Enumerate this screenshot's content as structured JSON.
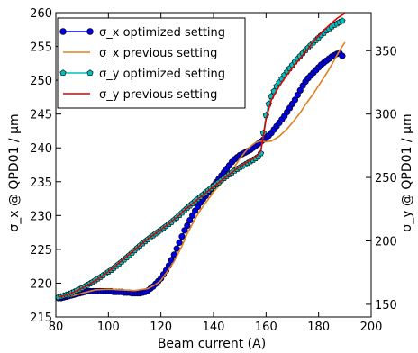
{
  "chart_data": {
    "type": "line",
    "title": "",
    "xlabel": "Beam current (A)",
    "ylabel_left": "σ_x @ QPD01 / μm",
    "ylabel_right": "σ_y @ QPD01 / μm",
    "xlim": [
      80,
      200
    ],
    "ylim_left": [
      215,
      260
    ],
    "ylim_right": [
      140,
      380
    ],
    "x_ticks": [
      80,
      100,
      120,
      140,
      160,
      180,
      200
    ],
    "y_left_ticks": [
      215,
      220,
      225,
      230,
      235,
      240,
      245,
      250,
      255,
      260
    ],
    "y_right_ticks": [
      150,
      200,
      250,
      300,
      350
    ],
    "grid": false,
    "legend_position": "top-left",
    "series": [
      {
        "name": "σ_x optimized setting",
        "axis": "left",
        "color": "#0000e0",
        "marker": "circle",
        "x": [
          81,
          82,
          83,
          84,
          85,
          86,
          87,
          88,
          89,
          90,
          91,
          92,
          93,
          94,
          95,
          96,
          97,
          98,
          99,
          100,
          101,
          102,
          103,
          104,
          105,
          106,
          107,
          108,
          109,
          110,
          111,
          112,
          113,
          114,
          115,
          116,
          117,
          118,
          119,
          120,
          121,
          122,
          123,
          124,
          125,
          126,
          127,
          128,
          129,
          130,
          131,
          132,
          133,
          134,
          135,
          136,
          137,
          138,
          139,
          140,
          141,
          142,
          143,
          144,
          145,
          146,
          147,
          148,
          149,
          150,
          151,
          152,
          153,
          154,
          155,
          156,
          157,
          158,
          159,
          160,
          161,
          162,
          163,
          164,
          165,
          166,
          167,
          168,
          169,
          170,
          171,
          172,
          173,
          174,
          175,
          176,
          177,
          178,
          179,
          180,
          181,
          182,
          183,
          184,
          185,
          186,
          187,
          188,
          189
        ],
        "y": [
          217.8,
          217.8,
          217.9,
          218.0,
          218.1,
          218.2,
          218.3,
          218.4,
          218.5,
          218.6,
          218.7,
          218.8,
          218.8,
          218.8,
          218.8,
          218.8,
          218.8,
          218.8,
          218.8,
          218.8,
          218.8,
          218.7,
          218.7,
          218.7,
          218.7,
          218.6,
          218.6,
          218.6,
          218.5,
          218.5,
          218.5,
          218.5,
          218.6,
          218.7,
          218.9,
          219.2,
          219.5,
          219.9,
          220.3,
          220.7,
          221.3,
          221.9,
          222.6,
          223.4,
          224.2,
          225.1,
          226.0,
          226.9,
          227.8,
          228.5,
          229.3,
          230.0,
          230.7,
          231.3,
          231.9,
          232.4,
          232.9,
          233.4,
          233.9,
          234.4,
          234.9,
          235.4,
          235.9,
          236.4,
          236.9,
          237.4,
          237.9,
          238.3,
          238.6,
          238.9,
          239.1,
          239.3,
          239.5,
          239.7,
          240.0,
          240.3,
          240.6,
          240.9,
          241.2,
          241.5,
          241.8,
          242.2,
          242.7,
          243.2,
          243.7,
          244.2,
          244.7,
          245.3,
          245.9,
          246.5,
          247.1,
          247.8,
          248.5,
          249.2,
          249.8,
          250.3,
          250.7,
          251.1,
          251.5,
          251.9,
          252.3,
          252.6,
          252.9,
          253.2,
          253.5,
          253.7,
          253.9,
          254.0,
          253.6
        ]
      },
      {
        "name": "σ_x previous setting",
        "axis": "left",
        "color": "#e08020",
        "marker": "none",
        "x": [
          81,
          85,
          90,
          95,
          100,
          105,
          110,
          115,
          118,
          120,
          122,
          125,
          128,
          130,
          133,
          135,
          138,
          140,
          143,
          145,
          148,
          150,
          152,
          154,
          156,
          158,
          160,
          162,
          165,
          168,
          170,
          173,
          175,
          178,
          180,
          183,
          185,
          188,
          190
        ],
        "y": [
          217.8,
          218.0,
          218.5,
          219.0,
          219.1,
          219.0,
          218.9,
          219.2,
          219.8,
          220.4,
          221.5,
          223.2,
          225.5,
          227.3,
          229.5,
          230.8,
          232.4,
          233.5,
          234.8,
          235.8,
          237.2,
          238.4,
          239.4,
          240.2,
          240.8,
          241.0,
          240.9,
          241.0,
          241.7,
          242.8,
          243.7,
          245.2,
          246.4,
          248.0,
          249.2,
          251.0,
          252.3,
          254.4,
          255.6
        ]
      },
      {
        "name": "σ_y optimized setting",
        "axis": "right",
        "color": "#00c0c0",
        "marker": "pentagon",
        "x": [
          81,
          82,
          83,
          84,
          85,
          86,
          87,
          88,
          89,
          90,
          91,
          92,
          93,
          94,
          95,
          96,
          97,
          98,
          99,
          100,
          101,
          102,
          103,
          104,
          105,
          106,
          107,
          108,
          109,
          110,
          111,
          112,
          113,
          114,
          115,
          116,
          117,
          118,
          119,
          120,
          121,
          122,
          123,
          124,
          125,
          126,
          127,
          128,
          129,
          130,
          131,
          132,
          133,
          134,
          135,
          136,
          137,
          138,
          139,
          140,
          141,
          142,
          143,
          144,
          145,
          146,
          147,
          148,
          149,
          150,
          151,
          152,
          153,
          154,
          155,
          156,
          157,
          158,
          159,
          160,
          161,
          162,
          163,
          164,
          165,
          166,
          167,
          168,
          169,
          170,
          171,
          172,
          173,
          174,
          175,
          176,
          177,
          178,
          179,
          180,
          181,
          182,
          183,
          184,
          185,
          186,
          187,
          188,
          189
        ],
        "y": [
          155.5,
          156.1,
          156.8,
          157.5,
          158.2,
          159.0,
          159.9,
          160.8,
          161.8,
          162.9,
          164.0,
          165.2,
          166.4,
          167.6,
          168.9,
          170.2,
          171.5,
          172.9,
          174.2,
          175.6,
          177.0,
          178.6,
          180.2,
          181.8,
          183.5,
          185.2,
          187.0,
          188.8,
          190.6,
          192.5,
          194.5,
          196.3,
          198.0,
          199.6,
          201.2,
          202.8,
          204.3,
          205.8,
          207.3,
          208.7,
          210.2,
          211.7,
          213.3,
          214.9,
          216.6,
          218.4,
          220.3,
          222.2,
          224.1,
          226.0,
          227.8,
          229.6,
          231.4,
          233.1,
          234.8,
          236.5,
          238.2,
          239.8,
          241.4,
          243.0,
          244.6,
          246.2,
          247.8,
          249.4,
          251.0,
          252.5,
          253.9,
          255.3,
          256.6,
          257.8,
          259.0,
          260.2,
          261.4,
          262.6,
          263.8,
          265.0,
          266.4,
          269.0,
          285.0,
          299.0,
          308.0,
          314.0,
          318.0,
          322.0,
          325.0,
          327.9,
          330.8,
          333.4,
          336.1,
          338.7,
          341.3,
          343.6,
          345.8,
          348.0,
          350.3,
          352.3,
          354.3,
          356.3,
          358.3,
          360.3,
          362.2,
          364.0,
          365.9,
          367.4,
          368.9,
          370.3,
          371.3,
          372.5,
          373.5
        ]
      },
      {
        "name": "σ_y previous setting",
        "axis": "right",
        "color": "#e00000",
        "marker": "none",
        "x": [
          81,
          84,
          87,
          90,
          94,
          98,
          102,
          106,
          110,
          114,
          118,
          122,
          126,
          130,
          134,
          138,
          142,
          146,
          150,
          154,
          156,
          157,
          158,
          159,
          160,
          162,
          165,
          168,
          172,
          175,
          178,
          181,
          184,
          187,
          190
        ],
        "y": [
          155.5,
          157.3,
          159.7,
          162.7,
          167.3,
          172.7,
          179.0,
          186.0,
          193.0,
          200.0,
          206.0,
          212.0,
          218.5,
          226.0,
          232.8,
          239.5,
          246.0,
          252.5,
          258.5,
          263.5,
          266.0,
          268.0,
          271.0,
          283.0,
          296.0,
          311.0,
          322.0,
          331.0,
          341.5,
          349.0,
          357.0,
          364.0,
          370.0,
          375.5,
          379.5
        ]
      }
    ]
  }
}
